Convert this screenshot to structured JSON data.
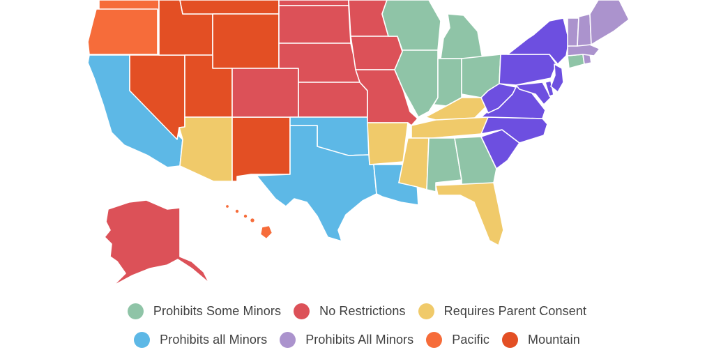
{
  "map": {
    "legend": [
      {
        "key": "some",
        "label": "Prohibits Some Minors",
        "color": "#8fc4a7"
      },
      {
        "key": "none",
        "label": "No Restrictions",
        "color": "#dc5158"
      },
      {
        "key": "parent",
        "label": "Requires Parent Consent",
        "color": "#f0ca6a"
      },
      {
        "key": "all",
        "label": "Prohibits all Minors",
        "color": "#5db8e6"
      },
      {
        "key": "allne",
        "label": "Prohibits All Minors",
        "color": "#ab93cd"
      },
      {
        "key": "pacific",
        "label": "Pacific",
        "color": "#f66c3a"
      },
      {
        "key": "mountain",
        "label": "Mountain",
        "color": "#e34f24"
      },
      {
        "key": "east",
        "label": "",
        "color": "#6d4fe0"
      }
    ],
    "states": [
      {
        "name": "Washington",
        "category": "pacific"
      },
      {
        "name": "Oregon",
        "category": "pacific"
      },
      {
        "name": "California",
        "category": "all"
      },
      {
        "name": "Nevada",
        "category": "mountain"
      },
      {
        "name": "Idaho",
        "category": "mountain"
      },
      {
        "name": "Montana",
        "category": "mountain"
      },
      {
        "name": "Wyoming",
        "category": "mountain"
      },
      {
        "name": "Utah",
        "category": "mountain"
      },
      {
        "name": "Arizona",
        "category": "parent"
      },
      {
        "name": "New Mexico",
        "category": "mountain"
      },
      {
        "name": "Colorado",
        "category": "none"
      },
      {
        "name": "North Dakota",
        "category": "none"
      },
      {
        "name": "South Dakota",
        "category": "none"
      },
      {
        "name": "Nebraska",
        "category": "none"
      },
      {
        "name": "Kansas",
        "category": "none"
      },
      {
        "name": "Oklahoma",
        "category": "all"
      },
      {
        "name": "Texas",
        "category": "all"
      },
      {
        "name": "Minnesota",
        "category": "none"
      },
      {
        "name": "Iowa",
        "category": "none"
      },
      {
        "name": "Missouri",
        "category": "none"
      },
      {
        "name": "Arkansas",
        "category": "parent"
      },
      {
        "name": "Louisiana",
        "category": "all"
      },
      {
        "name": "Wisconsin",
        "category": "some"
      },
      {
        "name": "Illinois",
        "category": "some"
      },
      {
        "name": "Michigan",
        "category": "some"
      },
      {
        "name": "Indiana",
        "category": "some"
      },
      {
        "name": "Ohio",
        "category": "some"
      },
      {
        "name": "Kentucky",
        "category": "parent"
      },
      {
        "name": "Tennessee",
        "category": "parent"
      },
      {
        "name": "Mississippi",
        "category": "parent"
      },
      {
        "name": "Alabama",
        "category": "some"
      },
      {
        "name": "Georgia",
        "category": "some"
      },
      {
        "name": "Florida",
        "category": "parent"
      },
      {
        "name": "South Carolina",
        "category": "east"
      },
      {
        "name": "North Carolina",
        "category": "east"
      },
      {
        "name": "Virginia",
        "category": "east"
      },
      {
        "name": "West Virginia",
        "category": "east"
      },
      {
        "name": "Maryland",
        "category": "east"
      },
      {
        "name": "Delaware",
        "category": "east"
      },
      {
        "name": "Pennsylvania",
        "category": "east"
      },
      {
        "name": "New Jersey",
        "category": "east"
      },
      {
        "name": "New York",
        "category": "east"
      },
      {
        "name": "Connecticut",
        "category": "some"
      },
      {
        "name": "Rhode Island",
        "category": "allne"
      },
      {
        "name": "Massachusetts",
        "category": "allne"
      },
      {
        "name": "Vermont",
        "category": "allne"
      },
      {
        "name": "New Hampshire",
        "category": "allne"
      },
      {
        "name": "Maine",
        "category": "allne"
      },
      {
        "name": "Alaska",
        "category": "none"
      },
      {
        "name": "Hawaii",
        "category": "pacific"
      }
    ]
  }
}
